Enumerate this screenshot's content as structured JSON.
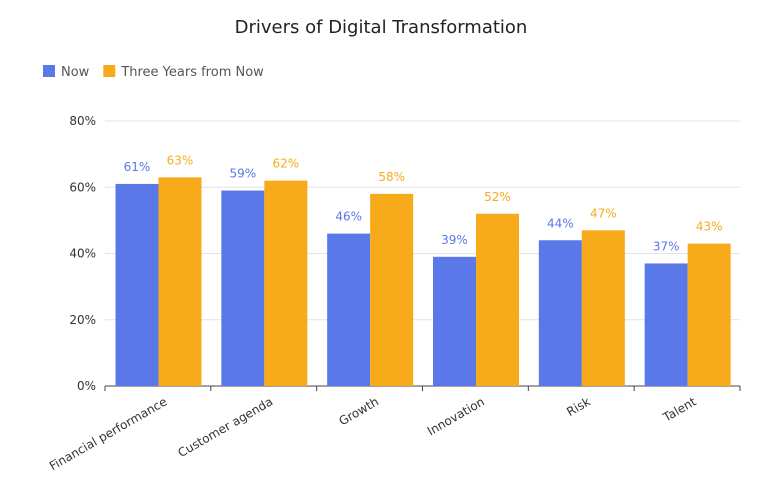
{
  "chart_data": {
    "type": "bar",
    "title": "Drivers of Digital Transformation",
    "xlabel": "",
    "ylabel": "",
    "categories": [
      "Financial performance",
      "Customer agenda",
      "Growth",
      "Innovation",
      "Risk",
      "Talent"
    ],
    "series": [
      {
        "name": "Now",
        "values": [
          61,
          59,
          46,
          39,
          44,
          37
        ],
        "color": "#5a78e8"
      },
      {
        "name": "Three Years from Now",
        "values": [
          63,
          62,
          58,
          52,
          47,
          43
        ],
        "color": "#f7ab1b"
      }
    ],
    "ylim": [
      0,
      80
    ],
    "yticks": [
      0,
      20,
      40,
      60,
      80
    ],
    "ytick_labels": [
      "0%",
      "20%",
      "40%",
      "60%",
      "80%"
    ],
    "data_labels": true,
    "grid": true,
    "legend": "top-left"
  }
}
